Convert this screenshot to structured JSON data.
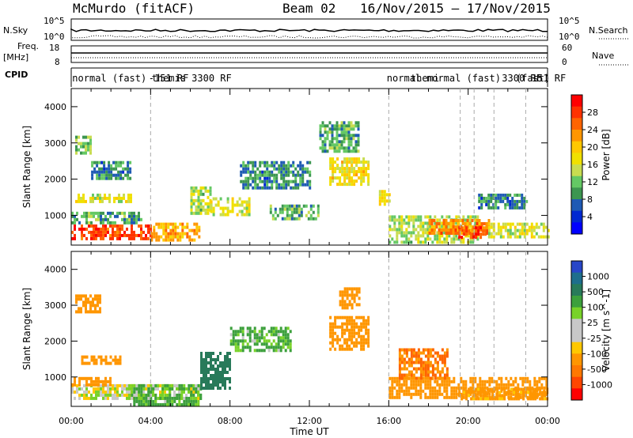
{
  "header": {
    "station": "McMurdo (fitACF)",
    "beam": "Beam 02",
    "period": "16/Nov/2015 – 17/Nov/2015"
  },
  "status_panels": {
    "nsky_label": "N.Sky",
    "nsky_ticks": [
      "10^5",
      "10^0"
    ],
    "nsearch_label": "N.Search",
    "nsearch_ticks": [
      "10^5",
      "10^0"
    ],
    "freq_label_1": "Freq.",
    "freq_label_2": "[MHz]",
    "freq_ticks": [
      "18",
      "8"
    ],
    "nave_label": "Nave",
    "nave_ticks": [
      "60",
      "0"
    ],
    "cpid_label": "CPID",
    "cpid_segments": [
      {
        "hour": 0.05,
        "text": "normal (fast)"
      },
      {
        "hour": 3.9,
        "text": "-151 RF"
      },
      {
        "hour": 4.05,
        "text": "themis 3300 RF"
      },
      {
        "hour": 15.9,
        "text": "normal"
      },
      {
        "hour": 17.1,
        "text": "themi"
      },
      {
        "hour": 17.9,
        "text": "normal (fast)"
      },
      {
        "hour": 21.7,
        "text": "3300 RF"
      },
      {
        "hour": 22.4,
        "text": "(fast)"
      },
      {
        "hour": 23.2,
        "text": "151 RF"
      }
    ]
  },
  "colorbars": {
    "power": {
      "label": "Power [dB]",
      "ticks": [
        "28",
        "24",
        "20",
        "16",
        "12",
        "8",
        "4"
      ],
      "colors": [
        "#ff0000",
        "#ff3200",
        "#ff6400",
        "#ff9600",
        "#ffc800",
        "#f0e000",
        "#c8dc50",
        "#64c864",
        "#3c9650",
        "#1e5ab4",
        "#0028d2",
        "#0000ff"
      ]
    },
    "velocity": {
      "label": "Velocity [m s^-1]",
      "ticks": [
        "1000",
        "500",
        "100",
        "25",
        "-25",
        "-100",
        "-500",
        "-1000"
      ],
      "colors": [
        "#2846c8",
        "#1e6e8c",
        "#287a5a",
        "#3ca03c",
        "#78d228",
        "#c8c8c8",
        "#c8c8c8",
        "#ffc800",
        "#ff9600",
        "#ff7800",
        "#ff4600",
        "#ff0000"
      ]
    }
  },
  "chart_data": [
    {
      "type": "heatmap",
      "title": "",
      "xlabel": "",
      "ylabel": "Slant Range [km]",
      "xlim": [
        0,
        24
      ],
      "ylim": [
        180,
        4500
      ],
      "yticks": [
        1000,
        2000,
        3000,
        4000
      ],
      "colorbar_label": "Power [dB]",
      "colorbar_range": [
        0,
        32
      ],
      "dashed_time_markers": [
        4.0,
        16.0,
        19.6,
        20.3,
        21.3,
        22.9
      ],
      "echo_regions": [
        {
          "t0": 0.0,
          "t1": 4.0,
          "r0": 350,
          "r1": 750,
          "value": 28
        },
        {
          "t0": 4.0,
          "t1": 6.4,
          "r0": 350,
          "r1": 800,
          "value": 22
        },
        {
          "t0": 0.0,
          "t1": 3.5,
          "r0": 800,
          "r1": 1100,
          "value": 10
        },
        {
          "t0": 0.2,
          "t1": 3.0,
          "r0": 1350,
          "r1": 1600,
          "value": 16
        },
        {
          "t0": 0.2,
          "t1": 1.0,
          "r0": 2700,
          "r1": 3200,
          "value": 12
        },
        {
          "t0": 1.0,
          "t1": 3.0,
          "r0": 2000,
          "r1": 2500,
          "value": 8
        },
        {
          "t0": 6.0,
          "t1": 7.0,
          "r0": 1100,
          "r1": 1800,
          "value": 14
        },
        {
          "t0": 7.0,
          "t1": 9.0,
          "r0": 1000,
          "r1": 1500,
          "value": 16
        },
        {
          "t0": 8.5,
          "t1": 12.0,
          "r0": 1800,
          "r1": 2500,
          "value": 8
        },
        {
          "t0": 10.0,
          "t1": 12.5,
          "r0": 900,
          "r1": 1300,
          "value": 10
        },
        {
          "t0": 12.5,
          "t1": 14.5,
          "r0": 2800,
          "r1": 3600,
          "value": 10
        },
        {
          "t0": 13.0,
          "t1": 15.0,
          "r0": 1900,
          "r1": 2600,
          "value": 18
        },
        {
          "t0": 15.5,
          "t1": 16.0,
          "r0": 1300,
          "r1": 1700,
          "value": 18
        },
        {
          "t0": 16.0,
          "t1": 20.5,
          "r0": 300,
          "r1": 1000,
          "value": 14
        },
        {
          "t0": 18.0,
          "t1": 21.0,
          "r0": 500,
          "r1": 900,
          "value": 24
        },
        {
          "t0": 19.5,
          "t1": 21.0,
          "r0": 400,
          "r1": 700,
          "value": 28
        },
        {
          "t0": 21.0,
          "t1": 24.0,
          "r0": 400,
          "r1": 800,
          "value": 16
        },
        {
          "t0": 20.5,
          "t1": 23.0,
          "r0": 1200,
          "r1": 1600,
          "value": 8
        }
      ]
    },
    {
      "type": "heatmap",
      "title": "",
      "xlabel": "Time UT",
      "ylabel": "Slant Range [km]",
      "xlim": [
        0,
        24
      ],
      "ylim": [
        180,
        4500
      ],
      "yticks": [
        1000,
        2000,
        3000,
        4000
      ],
      "xticks": [
        "00:00",
        "04:00",
        "08:00",
        "12:00",
        "16:00",
        "20:00",
        "00:00"
      ],
      "colorbar_label": "Velocity [m s^-1]",
      "dashed_time_markers": [
        4.0,
        16.0,
        19.6,
        20.3,
        21.3,
        22.9
      ],
      "echo_regions": [
        {
          "t0": 0.0,
          "t1": 6.5,
          "r0": 400,
          "r1": 800,
          "value": 0
        },
        {
          "t0": 0.0,
          "t1": 2.0,
          "r0": 800,
          "r1": 1000,
          "value": -200
        },
        {
          "t0": 0.2,
          "t1": 1.5,
          "r0": 2800,
          "r1": 3300,
          "value": -200
        },
        {
          "t0": 0.5,
          "t1": 2.5,
          "r0": 1350,
          "r1": 1600,
          "value": -200
        },
        {
          "t0": 3.0,
          "t1": 6.5,
          "r0": 250,
          "r1": 800,
          "value": 80
        },
        {
          "t0": 6.5,
          "t1": 8.0,
          "r0": 700,
          "r1": 1700,
          "value": 300
        },
        {
          "t0": 8.0,
          "t1": 11.0,
          "r0": 1700,
          "r1": 2400,
          "value": 80
        },
        {
          "t0": 13.0,
          "t1": 15.0,
          "r0": 1800,
          "r1": 2700,
          "value": -200
        },
        {
          "t0": 13.5,
          "t1": 14.5,
          "r0": 2900,
          "r1": 3500,
          "value": -200
        },
        {
          "t0": 16.0,
          "t1": 24.0,
          "r0": 400,
          "r1": 1000,
          "value": -200
        },
        {
          "t0": 16.5,
          "t1": 19.0,
          "r0": 1000,
          "r1": 1800,
          "value": -300
        },
        {
          "t0": 19.5,
          "t1": 24.0,
          "r0": 400,
          "r1": 700,
          "value": -150
        }
      ]
    }
  ]
}
